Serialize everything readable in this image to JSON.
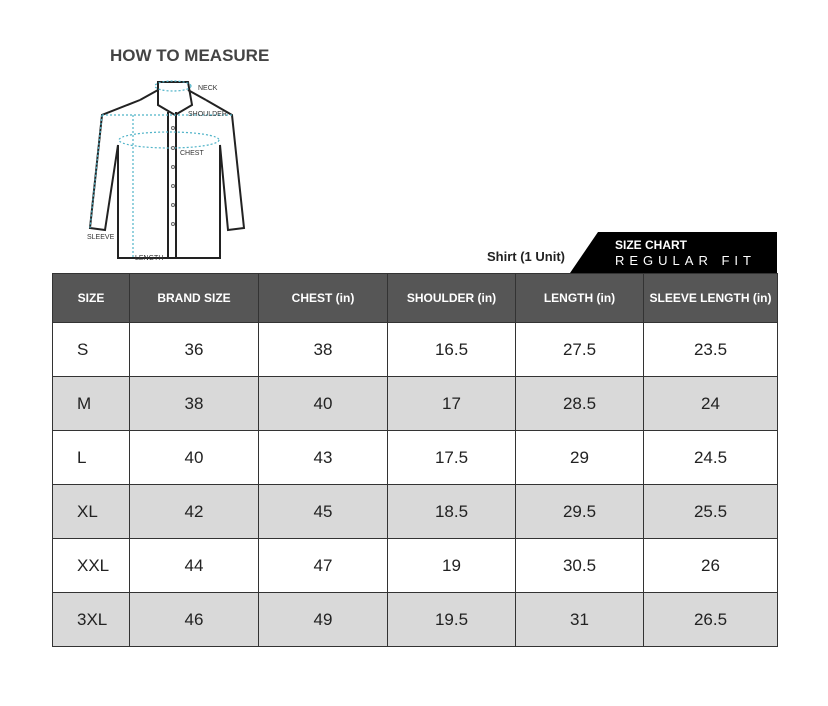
{
  "measure": {
    "title": "HOW TO MEASURE",
    "labels": {
      "neck": "NECK",
      "shoulder": "SHOULDER",
      "chest": "CHEST",
      "sleeve": "SLEEVE",
      "length": "LENGTH"
    }
  },
  "unit_label": "Shirt (1 Unit)",
  "badge": {
    "line1": "SIZE CHART",
    "line2": "REGULAR FIT"
  },
  "table": {
    "headers": [
      "SIZE",
      "BRAND SIZE",
      "CHEST  (in)",
      "SHOULDER  (in)",
      "LENGTH  (in)",
      "SLEEVE LENGTH (in)"
    ],
    "rows": [
      [
        "S",
        "36",
        "38",
        "16.5",
        "27.5",
        "23.5"
      ],
      [
        "M",
        "38",
        "40",
        "17",
        "28.5",
        "24"
      ],
      [
        "L",
        "40",
        "43",
        "17.5",
        "29",
        "24.5"
      ],
      [
        "XL",
        "42",
        "45",
        "18.5",
        "29.5",
        "25.5"
      ],
      [
        "XXL",
        "44",
        "47",
        "19",
        "30.5",
        "26"
      ],
      [
        "3XL",
        "46",
        "49",
        "19.5",
        "31",
        "26.5"
      ]
    ]
  },
  "colors": {
    "header": "#565656",
    "alt_row": "#d9d9d9",
    "measure_line": "#4fb3c8"
  }
}
